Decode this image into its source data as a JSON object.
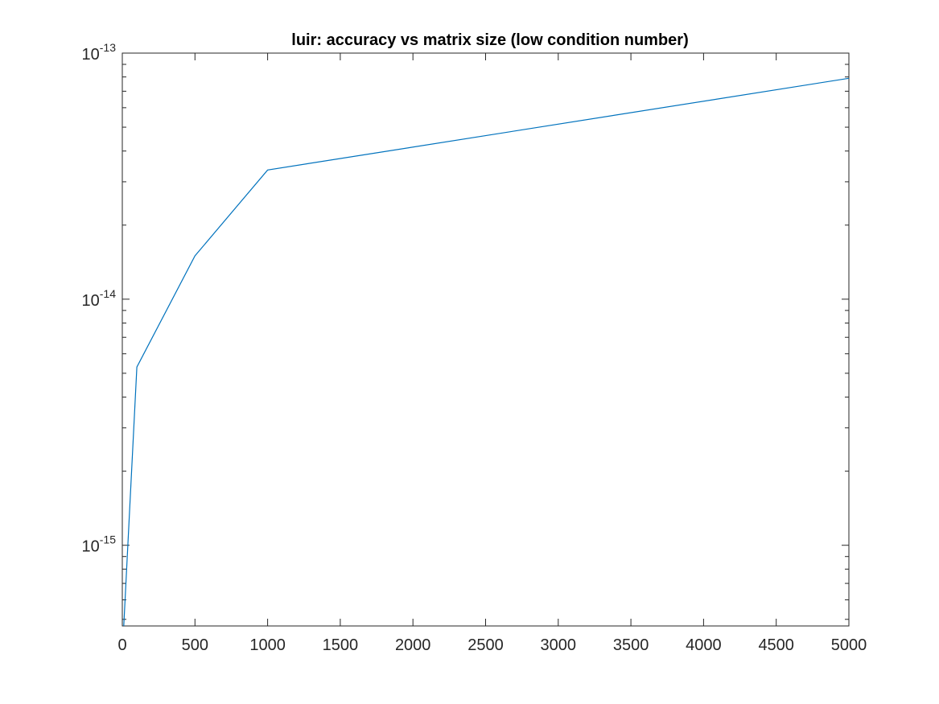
{
  "chart_data": {
    "type": "line",
    "title": "luir: accuracy vs matrix size (low condition number)",
    "xlabel": "",
    "ylabel": "",
    "xscale": "linear",
    "yscale": "log",
    "xlim": [
      0,
      5000
    ],
    "ylim": [
      4.7e-16,
      1e-13
    ],
    "xticks": [
      0,
      500,
      1000,
      1500,
      2000,
      2500,
      3000,
      3500,
      4000,
      4500,
      5000
    ],
    "xtick_labels": [
      "0",
      "500",
      "1000",
      "1500",
      "2000",
      "2500",
      "3000",
      "3500",
      "4000",
      "4500",
      "5000"
    ],
    "yticks": [
      {
        "value": 1e-15,
        "base": "10",
        "exp": "-15"
      },
      {
        "value": 1e-14,
        "base": "10",
        "exp": "-14"
      },
      {
        "value": 1e-13,
        "base": "10",
        "exp": "-13"
      }
    ],
    "grid": false,
    "legend": "none",
    "series": [
      {
        "color": "#0072BD",
        "x": [
          10,
          100,
          500,
          1000,
          5000
        ],
        "y": [
          4.7e-16,
          5.3e-15,
          1.5e-14,
          3.35e-14,
          7.9e-14
        ]
      }
    ]
  }
}
